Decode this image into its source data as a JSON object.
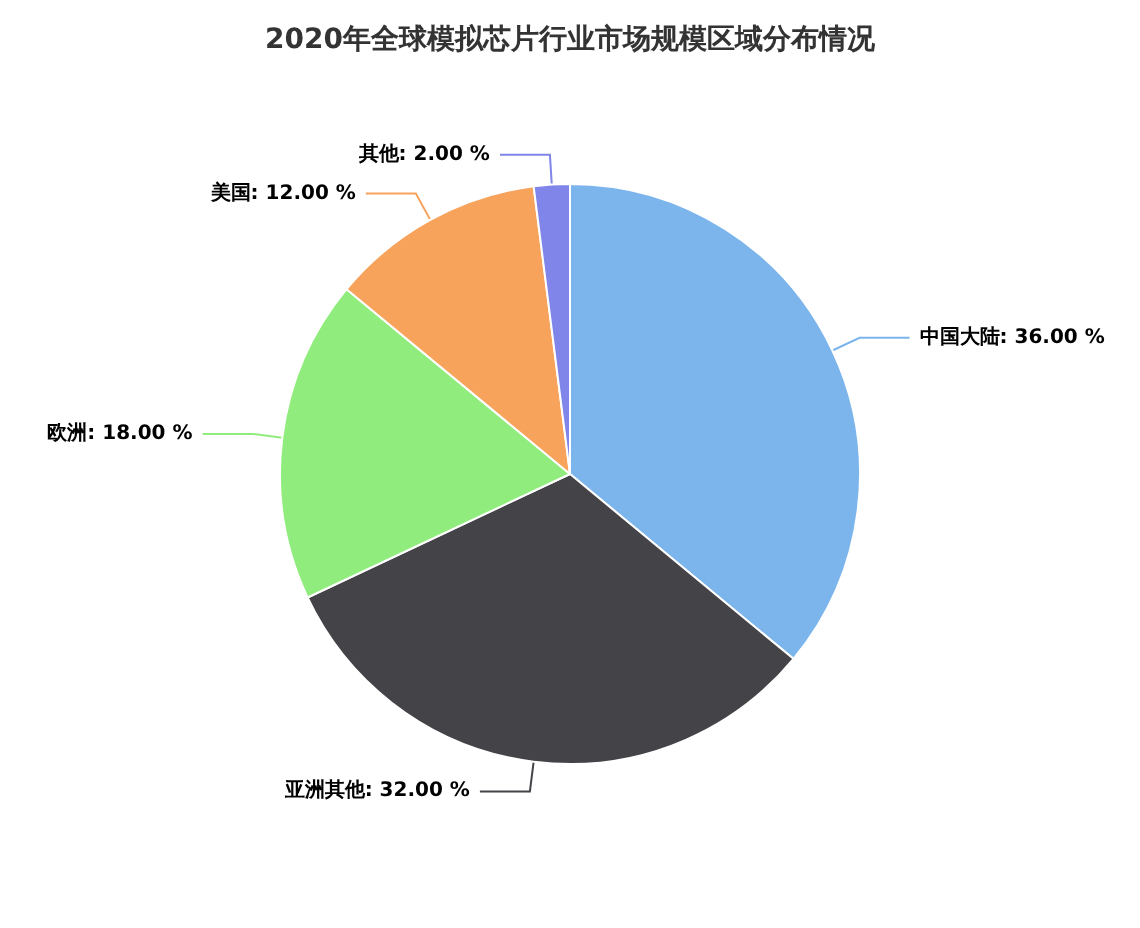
{
  "chart_data": {
    "type": "pie",
    "title": "2020年全球模拟芯片行业市场规模区域分布情况",
    "categories": [
      "中国大陆",
      "亚洲其他",
      "欧洲",
      "美国",
      "其他"
    ],
    "values": [
      36,
      32,
      18,
      12,
      2
    ],
    "value_labels": [
      "36.00 %",
      "32.00 %",
      "18.00 %",
      "12.00 %",
      "2.00 %"
    ],
    "colors": [
      "#7cb5ec",
      "#434348",
      "#90ed7d",
      "#f7a35c",
      "#8085e9"
    ],
    "legend": false
  }
}
